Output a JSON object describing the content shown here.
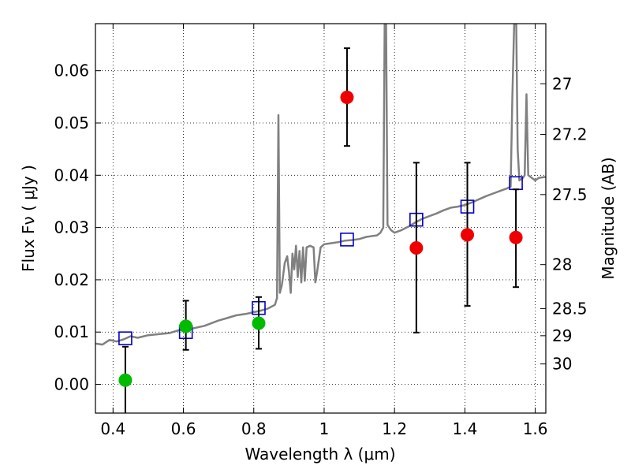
{
  "chart_data": {
    "type": "scatter",
    "xlabel": "Wavelength  λ (μm)",
    "ylabel": "Flux  Fν  ( μJy )",
    "ylabel_right": "Magnitude (AB)",
    "xlim": [
      0.35,
      1.63
    ],
    "ylim": [
      -0.0055,
      0.069
    ],
    "grid": true,
    "x_ticks": [
      0.4,
      0.6,
      0.8,
      1.0,
      1.2,
      1.4,
      1.6
    ],
    "x_tick_labels": [
      "0.4",
      "0.6",
      "0.8",
      "1",
      "1.2",
      "1.4",
      "1.6"
    ],
    "y_ticks": [
      0.0,
      0.01,
      0.02,
      0.03,
      0.04,
      0.05,
      0.06
    ],
    "y_tick_labels": [
      "0.00",
      "0.01",
      "0.02",
      "0.03",
      "0.04",
      "0.05",
      "0.06"
    ],
    "right_axis_ticks": [
      {
        "label": "27",
        "flux": 0.0575
      },
      {
        "label": "27.2",
        "flux": 0.0478
      },
      {
        "label": "27.5",
        "flux": 0.0363
      },
      {
        "label": "28",
        "flux": 0.0229
      },
      {
        "label": "28.5",
        "flux": 0.0145
      },
      {
        "label": "29",
        "flux": 0.0093
      },
      {
        "label": "30",
        "flux": 0.0039
      }
    ],
    "colors": {
      "spectrum": "#808080",
      "model_square": "#0000cc",
      "green_point": "#00bb00",
      "red_point": "#ee0000",
      "errorbar": "#000000"
    },
    "series": [
      {
        "marker": "line",
        "color": "spectrum",
        "points": [
          [
            0.35,
            0.0078
          ],
          [
            0.37,
            0.0076
          ],
          [
            0.39,
            0.0085
          ],
          [
            0.41,
            0.0082
          ],
          [
            0.43,
            0.0086
          ],
          [
            0.45,
            0.0092
          ],
          [
            0.47,
            0.0089
          ],
          [
            0.5,
            0.0094
          ],
          [
            0.53,
            0.0096
          ],
          [
            0.56,
            0.0098
          ],
          [
            0.59,
            0.0104
          ],
          [
            0.62,
            0.0106
          ],
          [
            0.64,
            0.0109
          ],
          [
            0.66,
            0.0112
          ],
          [
            0.68,
            0.0117
          ],
          [
            0.7,
            0.0122
          ],
          [
            0.72,
            0.0126
          ],
          [
            0.75,
            0.0132
          ],
          [
            0.78,
            0.0135
          ],
          [
            0.8,
            0.0138
          ],
          [
            0.82,
            0.0141
          ],
          [
            0.84,
            0.0145
          ],
          [
            0.86,
            0.0152
          ],
          [
            0.866,
            0.0165
          ],
          [
            0.87,
            0.0515
          ],
          [
            0.874,
            0.0175
          ],
          [
            0.88,
            0.019
          ],
          [
            0.888,
            0.0232
          ],
          [
            0.895,
            0.0245
          ],
          [
            0.9,
            0.0215
          ],
          [
            0.905,
            0.0175
          ],
          [
            0.91,
            0.025
          ],
          [
            0.915,
            0.022
          ],
          [
            0.92,
            0.0265
          ],
          [
            0.925,
            0.0205
          ],
          [
            0.93,
            0.0255
          ],
          [
            0.935,
            0.0195
          ],
          [
            0.94,
            0.0262
          ],
          [
            0.945,
            0.0198
          ],
          [
            0.95,
            0.0262
          ],
          [
            0.96,
            0.0265
          ],
          [
            0.97,
            0.0262
          ],
          [
            0.975,
            0.0195
          ],
          [
            0.98,
            0.0215
          ],
          [
            0.99,
            0.0262
          ],
          [
            1.0,
            0.0268
          ],
          [
            1.02,
            0.027
          ],
          [
            1.04,
            0.0272
          ],
          [
            1.06,
            0.0275
          ],
          [
            1.08,
            0.0276
          ],
          [
            1.1,
            0.0278
          ],
          [
            1.12,
            0.0282
          ],
          [
            1.14,
            0.0284
          ],
          [
            1.15,
            0.0285
          ],
          [
            1.16,
            0.029
          ],
          [
            1.168,
            0.03
          ],
          [
            1.172,
            0.069
          ],
          [
            1.176,
            0.069
          ],
          [
            1.18,
            0.0305
          ],
          [
            1.19,
            0.0295
          ],
          [
            1.2,
            0.029
          ],
          [
            1.22,
            0.0295
          ],
          [
            1.24,
            0.0302
          ],
          [
            1.26,
            0.031
          ],
          [
            1.28,
            0.0317
          ],
          [
            1.3,
            0.0322
          ],
          [
            1.32,
            0.0327
          ],
          [
            1.34,
            0.0333
          ],
          [
            1.36,
            0.0338
          ],
          [
            1.38,
            0.034
          ],
          [
            1.4,
            0.0343
          ],
          [
            1.42,
            0.0348
          ],
          [
            1.44,
            0.0354
          ],
          [
            1.46,
            0.036
          ],
          [
            1.48,
            0.0365
          ],
          [
            1.5,
            0.037
          ],
          [
            1.52,
            0.0375
          ],
          [
            1.53,
            0.0378
          ],
          [
            1.535,
            0.055
          ],
          [
            1.54,
            0.069
          ],
          [
            1.546,
            0.069
          ],
          [
            1.55,
            0.045
          ],
          [
            1.555,
            0.039
          ],
          [
            1.565,
            0.0395
          ],
          [
            1.57,
            0.04
          ],
          [
            1.575,
            0.0555
          ],
          [
            1.58,
            0.04
          ],
          [
            1.59,
            0.0395
          ],
          [
            1.6,
            0.039
          ],
          [
            1.61,
            0.0395
          ],
          [
            1.63,
            0.0397
          ]
        ]
      },
      {
        "marker": "square",
        "color": "model_square",
        "points": [
          [
            0.435,
            0.0088
          ],
          [
            0.607,
            0.01
          ],
          [
            0.814,
            0.0146
          ],
          [
            1.065,
            0.0277
          ],
          [
            1.262,
            0.0315
          ],
          [
            1.407,
            0.034
          ],
          [
            1.545,
            0.0385
          ]
        ]
      },
      {
        "marker": "circle",
        "color": "green_point",
        "points": [
          [
            0.435,
            0.0008
          ],
          [
            0.607,
            0.0111
          ],
          [
            0.814,
            0.0117
          ]
        ],
        "yerr": [
          [
            -0.006,
            0.0072
          ],
          [
            0.0066,
            0.016
          ],
          [
            0.0068,
            0.0167
          ]
        ]
      },
      {
        "marker": "circle",
        "color": "red_point",
        "points": [
          [
            1.065,
            0.0549
          ],
          [
            1.262,
            0.0261
          ],
          [
            1.407,
            0.0286
          ],
          [
            1.545,
            0.0281
          ]
        ],
        "yerr": [
          [
            0.0456,
            0.0643
          ],
          [
            0.0099,
            0.0424
          ],
          [
            0.015,
            0.0424
          ],
          [
            0.0186,
            0.0373
          ]
        ]
      }
    ]
  }
}
